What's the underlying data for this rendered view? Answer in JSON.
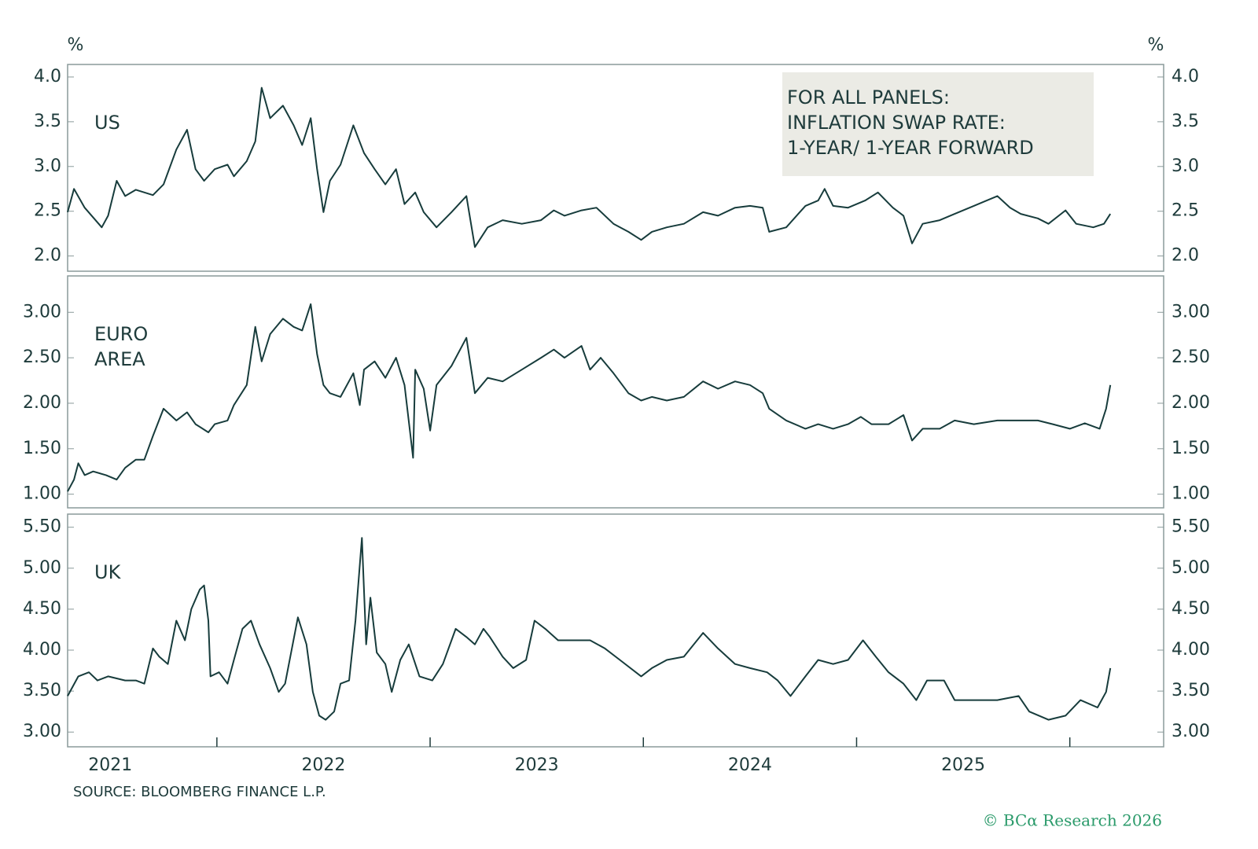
{
  "units": "%",
  "note": [
    "FOR ALL PANELS:",
    "INFLATION SWAP RATE:",
    "1-YEAR/ 1-YEAR FORWARD"
  ],
  "source": "SOURCE: BLOOMBERG FINANCE L.P.",
  "copyright": "© BCα Research 2026",
  "chart_data": [
    {
      "type": "line",
      "title": "US",
      "color": "#173c3c",
      "xlim": [
        2021.3,
        2026.44
      ],
      "ylim": [
        1.83,
        4.14
      ],
      "yticks": [
        {
          "value": 2,
          "label": "2.0"
        },
        2.5,
        {
          "value": 3,
          "label": "3.0"
        },
        3.5,
        {
          "value": 4,
          "label": "4.0"
        }
      ],
      "x": [
        2021.3,
        2021.33,
        2021.38,
        2021.46,
        2021.49,
        2021.53,
        2021.57,
        2021.62,
        2021.7,
        2021.75,
        2021.81,
        2021.86,
        2021.9,
        2021.94,
        2021.99,
        2022.05,
        2022.08,
        2022.14,
        2022.18,
        2022.21,
        2022.25,
        2022.31,
        2022.36,
        2022.4,
        2022.44,
        2022.47,
        2022.5,
        2022.53,
        2022.58,
        2022.64,
        2022.69,
        2022.74,
        2022.79,
        2022.84,
        2022.88,
        2022.93,
        2022.97,
        2023.03,
        2023.1,
        2023.17,
        2023.21,
        2023.27,
        2023.34,
        2023.43,
        2023.52,
        2023.58,
        2023.63,
        2023.71,
        2023.78,
        2023.86,
        2023.93,
        2023.99,
        2024.04,
        2024.11,
        2024.19,
        2024.28,
        2024.35,
        2024.43,
        2024.5,
        2024.56,
        2024.59,
        2024.67,
        2024.76,
        2024.82,
        2024.85,
        2024.89,
        2024.96,
        2025.04,
        2025.1,
        2025.17,
        2025.22,
        2025.26,
        2025.31,
        2025.39,
        2025.46,
        2025.55,
        2025.66,
        2025.72,
        2025.77,
        2025.85,
        2025.9,
        2025.98,
        2026.03,
        2026.11,
        2026.16,
        2026.19
      ],
      "values": [
        2.49,
        2.75,
        2.54,
        2.32,
        2.45,
        2.84,
        2.67,
        2.74,
        2.68,
        2.8,
        3.19,
        3.41,
        2.97,
        2.84,
        2.97,
        3.02,
        2.89,
        3.06,
        3.28,
        3.88,
        3.54,
        3.68,
        3.46,
        3.24,
        3.54,
        2.97,
        2.49,
        2.84,
        3.02,
        3.46,
        3.15,
        2.97,
        2.8,
        2.97,
        2.58,
        2.71,
        2.49,
        2.32,
        2.49,
        2.67,
        2.1,
        2.32,
        2.4,
        2.36,
        2.4,
        2.51,
        2.45,
        2.51,
        2.54,
        2.36,
        2.27,
        2.18,
        2.27,
        2.32,
        2.36,
        2.49,
        2.45,
        2.54,
        2.56,
        2.54,
        2.27,
        2.32,
        2.56,
        2.62,
        2.75,
        2.56,
        2.54,
        2.62,
        2.71,
        2.54,
        2.45,
        2.14,
        2.36,
        2.4,
        2.47,
        2.56,
        2.67,
        2.54,
        2.47,
        2.42,
        2.36,
        2.51,
        2.36,
        2.32,
        2.36,
        2.47
      ]
    },
    {
      "type": "line",
      "title": "EURO AREA",
      "color": "#173c3c",
      "xlim": [
        2021.3,
        2026.44
      ],
      "ylim": [
        0.85,
        3.4
      ],
      "yticks": [
        {
          "value": 1,
          "label": "1.00"
        },
        {
          "value": 1.5,
          "label": "1.50"
        },
        {
          "value": 2,
          "label": "2.00"
        },
        {
          "value": 2.5,
          "label": "2.50"
        },
        {
          "value": 3,
          "label": "3.00"
        }
      ],
      "x": [
        2021.3,
        2021.33,
        2021.35,
        2021.38,
        2021.42,
        2021.48,
        2021.53,
        2021.57,
        2021.62,
        2021.66,
        2021.7,
        2021.75,
        2021.81,
        2021.86,
        2021.9,
        2021.96,
        2021.99,
        2022.05,
        2022.08,
        2022.14,
        2022.18,
        2022.21,
        2022.25,
        2022.31,
        2022.36,
        2022.4,
        2022.44,
        2022.47,
        2022.5,
        2022.53,
        2022.58,
        2022.64,
        2022.67,
        2022.69,
        2022.74,
        2022.79,
        2022.84,
        2022.88,
        2022.92,
        2022.93,
        2022.97,
        2023.0,
        2023.03,
        2023.1,
        2023.17,
        2023.21,
        2023.27,
        2023.34,
        2023.43,
        2023.52,
        2023.58,
        2023.63,
        2023.71,
        2023.75,
        2023.8,
        2023.86,
        2023.93,
        2023.99,
        2024.04,
        2024.11,
        2024.19,
        2024.28,
        2024.35,
        2024.43,
        2024.5,
        2024.56,
        2024.59,
        2024.67,
        2024.76,
        2024.82,
        2024.89,
        2024.96,
        2025.02,
        2025.07,
        2025.15,
        2025.22,
        2025.26,
        2025.31,
        2025.39,
        2025.46,
        2025.55,
        2025.66,
        2025.77,
        2025.85,
        2025.92,
        2026.0,
        2026.07,
        2026.14,
        2026.17,
        2026.19
      ],
      "values": [
        1.03,
        1.16,
        1.34,
        1.21,
        1.25,
        1.21,
        1.16,
        1.29,
        1.38,
        1.38,
        1.64,
        1.94,
        1.81,
        1.9,
        1.77,
        1.68,
        1.77,
        1.81,
        1.98,
        2.2,
        2.84,
        2.46,
        2.76,
        2.93,
        2.84,
        2.8,
        3.09,
        2.54,
        2.2,
        2.11,
        2.07,
        2.33,
        1.98,
        2.37,
        2.46,
        2.28,
        2.5,
        2.2,
        1.4,
        2.37,
        2.16,
        1.7,
        2.2,
        2.41,
        2.72,
        2.11,
        2.28,
        2.24,
        2.37,
        2.5,
        2.59,
        2.5,
        2.63,
        2.37,
        2.5,
        2.33,
        2.11,
        2.03,
        2.07,
        2.03,
        2.07,
        2.24,
        2.16,
        2.24,
        2.2,
        2.11,
        1.94,
        1.81,
        1.72,
        1.77,
        1.72,
        1.77,
        1.85,
        1.77,
        1.77,
        1.87,
        1.59,
        1.72,
        1.72,
        1.81,
        1.77,
        1.81,
        1.81,
        1.81,
        1.77,
        1.72,
        1.78,
        1.72,
        1.94,
        2.2
      ]
    },
    {
      "type": "line",
      "title": "UK",
      "color": "#173c3c",
      "xlim": [
        2021.3,
        2026.44
      ],
      "ylim": [
        2.82,
        5.66
      ],
      "yticks": [
        {
          "value": 3,
          "label": "3.00"
        },
        {
          "value": 3.5,
          "label": "3.50"
        },
        {
          "value": 4,
          "label": "4.00"
        },
        {
          "value": 4.5,
          "label": "4.50"
        },
        {
          "value": 5,
          "label": "5.00"
        },
        {
          "value": 5.5,
          "label": "5.50"
        }
      ],
      "xticks": [
        {
          "value": 2021.5,
          "label": "2021"
        },
        {
          "value": 2022.5,
          "label": "2022"
        },
        {
          "value": 2023.5,
          "label": "2023"
        },
        {
          "value": 2024.5,
          "label": "2024"
        },
        {
          "value": 2025.5,
          "label": "2025"
        }
      ],
      "x": [
        2021.3,
        2021.35,
        2021.4,
        2021.44,
        2021.49,
        2021.57,
        2021.62,
        2021.66,
        2021.7,
        2021.73,
        2021.77,
        2021.81,
        2021.85,
        2021.88,
        2021.92,
        2021.94,
        2021.96,
        2021.97,
        2022.01,
        2022.05,
        2022.08,
        2022.12,
        2022.16,
        2022.2,
        2022.25,
        2022.29,
        2022.32,
        2022.38,
        2022.42,
        2022.45,
        2022.48,
        2022.51,
        2022.55,
        2022.58,
        2022.62,
        2022.65,
        2022.68,
        2022.7,
        2022.72,
        2022.75,
        2022.79,
        2022.82,
        2022.86,
        2022.9,
        2022.95,
        2023.01,
        2023.06,
        2023.12,
        2023.17,
        2023.21,
        2023.25,
        2023.28,
        2023.34,
        2023.39,
        2023.45,
        2023.49,
        2023.54,
        2023.6,
        2023.67,
        2023.75,
        2023.82,
        2023.89,
        2023.99,
        2024.04,
        2024.11,
        2024.19,
        2024.28,
        2024.35,
        2024.43,
        2024.5,
        2024.58,
        2024.63,
        2024.69,
        2024.76,
        2024.82,
        2024.89,
        2024.96,
        2025.03,
        2025.09,
        2025.15,
        2025.22,
        2025.28,
        2025.33,
        2025.41,
        2025.46,
        2025.55,
        2025.66,
        2025.76,
        2025.81,
        2025.9,
        2025.98,
        2026.05,
        2026.13,
        2026.17,
        2026.19
      ],
      "values": [
        3.44,
        3.68,
        3.73,
        3.63,
        3.68,
        3.63,
        3.63,
        3.59,
        4.02,
        3.92,
        3.83,
        4.36,
        4.12,
        4.5,
        4.74,
        4.79,
        4.36,
        3.68,
        3.73,
        3.59,
        3.88,
        4.26,
        4.36,
        4.07,
        3.78,
        3.49,
        3.59,
        4.4,
        4.07,
        3.49,
        3.2,
        3.15,
        3.25,
        3.59,
        3.63,
        4.36,
        5.37,
        4.07,
        4.64,
        3.97,
        3.83,
        3.49,
        3.88,
        4.07,
        3.68,
        3.63,
        3.83,
        4.26,
        4.16,
        4.07,
        4.26,
        4.16,
        3.92,
        3.78,
        3.88,
        4.36,
        4.26,
        4.12,
        4.12,
        4.12,
        4.02,
        3.88,
        3.68,
        3.78,
        3.88,
        3.92,
        4.21,
        4.02,
        3.83,
        3.78,
        3.73,
        3.63,
        3.44,
        3.68,
        3.88,
        3.83,
        3.88,
        4.12,
        3.92,
        3.73,
        3.59,
        3.39,
        3.63,
        3.63,
        3.39,
        3.39,
        3.39,
        3.44,
        3.25,
        3.15,
        3.2,
        3.39,
        3.3,
        3.49,
        3.78
      ]
    }
  ]
}
